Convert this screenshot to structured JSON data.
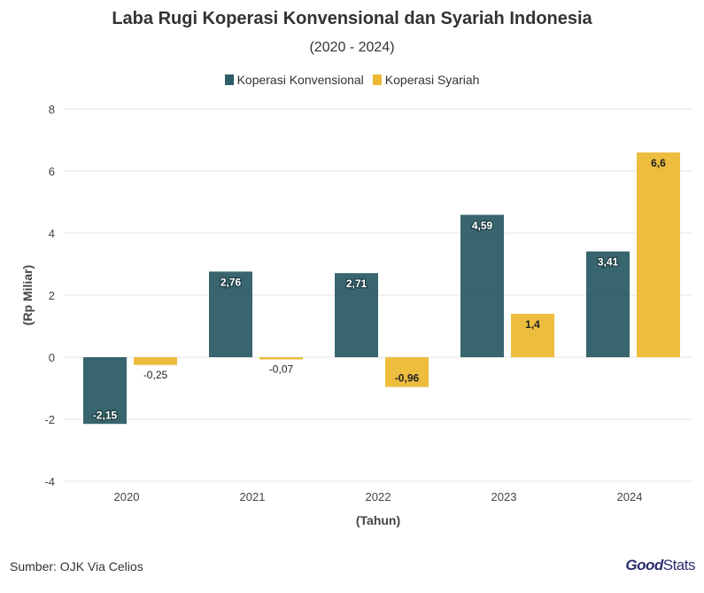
{
  "colors": {
    "konvensional": "#2d5d66",
    "syariah": "#ecb934",
    "grid": "#e6e6e6",
    "axis_text": "#444444"
  },
  "chart_data": {
    "type": "bar",
    "title": "Laba Rugi Koperasi Konvensional dan Syariah Indonesia",
    "subtitle": "(2020 - 2024)",
    "xlabel": "(Tahun)",
    "ylabel": "(Rp Miliar)",
    "ylim": [
      -4,
      8
    ],
    "yticks": [
      -4,
      -2,
      0,
      2,
      4,
      6,
      8
    ],
    "categories": [
      "2020",
      "2021",
      "2022",
      "2023",
      "2024"
    ],
    "legend_position": "top-center",
    "grid": true,
    "series": [
      {
        "name": "Koperasi Konvensional",
        "values": [
          -2.15,
          2.76,
          2.71,
          4.59,
          3.41
        ],
        "labels": [
          "-2,15",
          "2,76",
          "2,71",
          "4,59",
          "3,41"
        ]
      },
      {
        "name": "Koperasi Syariah",
        "values": [
          -0.25,
          -0.07,
          -0.96,
          1.4,
          6.6
        ],
        "labels": [
          "-0,25",
          "-0,07",
          "-0,96",
          "1,4",
          "6,6"
        ]
      }
    ]
  },
  "footer": {
    "source": "Sumber: OJK Via Celios",
    "brand_part1": "Good",
    "brand_part2": "Stats"
  }
}
